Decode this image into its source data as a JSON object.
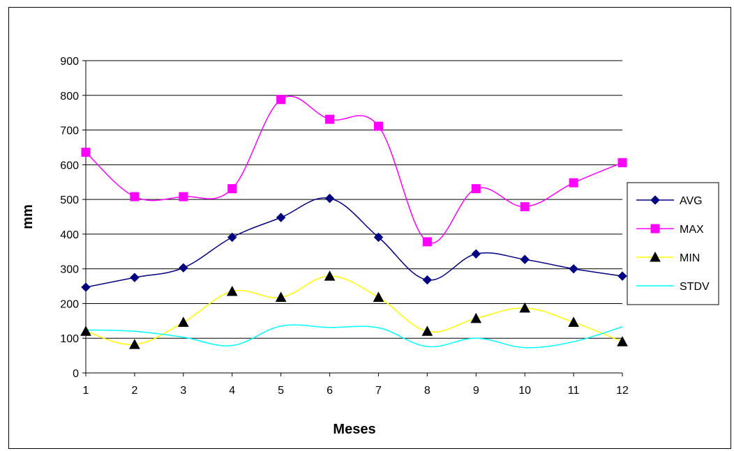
{
  "chart_data": {
    "type": "line",
    "title": "",
    "xlabel": "Meses",
    "ylabel": "mm",
    "x": [
      1,
      2,
      3,
      4,
      5,
      6,
      7,
      8,
      9,
      10,
      11,
      12
    ],
    "ylim": [
      0,
      900
    ],
    "yticks": [
      0,
      100,
      200,
      300,
      400,
      500,
      600,
      700,
      800,
      900
    ],
    "grid": true,
    "legend_position": "right",
    "smoothed": true,
    "series": [
      {
        "name": "AVG",
        "color": "#000080",
        "marker": "diamond",
        "values": [
          247,
          275,
          303,
          391,
          448,
          503,
          391,
          268,
          343,
          327,
          300,
          279
        ]
      },
      {
        "name": "MAX",
        "color": "#FF00FF",
        "marker": "square",
        "values": [
          636,
          508,
          508,
          531,
          788,
          731,
          711,
          378,
          531,
          479,
          548,
          606
        ]
      },
      {
        "name": "MIN",
        "color": "#FFFF00",
        "marker": "triangle",
        "values": [
          120,
          82,
          146,
          235,
          218,
          279,
          218,
          120,
          157,
          187,
          146,
          90
        ]
      },
      {
        "name": "STDV",
        "color": "#00FFFF",
        "marker": "none",
        "values": [
          124,
          120,
          103,
          79,
          135,
          131,
          130,
          76,
          100,
          73,
          90,
          133
        ]
      }
    ]
  }
}
